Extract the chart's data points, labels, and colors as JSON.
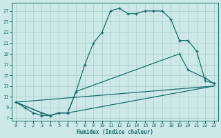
{
  "xlabel": "Humidex (Indice chaleur)",
  "bg_color": "#cce8e8",
  "grid_color": "#aacccc",
  "line_color": "#1a6b6b",
  "xlim": [
    -0.5,
    23.5
  ],
  "ylim": [
    6.5,
    28.5
  ],
  "xticks": [
    0,
    1,
    2,
    3,
    4,
    5,
    6,
    7,
    8,
    9,
    10,
    11,
    12,
    13,
    14,
    15,
    16,
    17,
    18,
    19,
    20,
    21,
    22,
    23
  ],
  "yticks": [
    7,
    9,
    11,
    13,
    15,
    17,
    19,
    21,
    23,
    25,
    27
  ],
  "line1_x": [
    0,
    1,
    2,
    3,
    4,
    5,
    6,
    7,
    8,
    9,
    10,
    11,
    12,
    13,
    14,
    15,
    16,
    17,
    18,
    19
  ],
  "line1_y": [
    10,
    9,
    8,
    7.5,
    7.5,
    8,
    8,
    12,
    17,
    21,
    23,
    27,
    27.5,
    26.5,
    26.5,
    27,
    27,
    27,
    25.5,
    21.5
  ],
  "line2_x": [
    19,
    20,
    21,
    22,
    23
  ],
  "line2_y": [
    21.5,
    21.5,
    19.5,
    14,
    13.5
  ],
  "line3_x": [
    0,
    3,
    4,
    5,
    6,
    7,
    19,
    20,
    22,
    23
  ],
  "line3_y": [
    10,
    8,
    7.5,
    8,
    8,
    12,
    19,
    16,
    14.5,
    13.5
  ],
  "line4_x": [
    0,
    3,
    4,
    5,
    6,
    23
  ],
  "line4_y": [
    10,
    8,
    7.5,
    8,
    8,
    13
  ],
  "line5_x": [
    0,
    23
  ],
  "line5_y": [
    10,
    13
  ]
}
